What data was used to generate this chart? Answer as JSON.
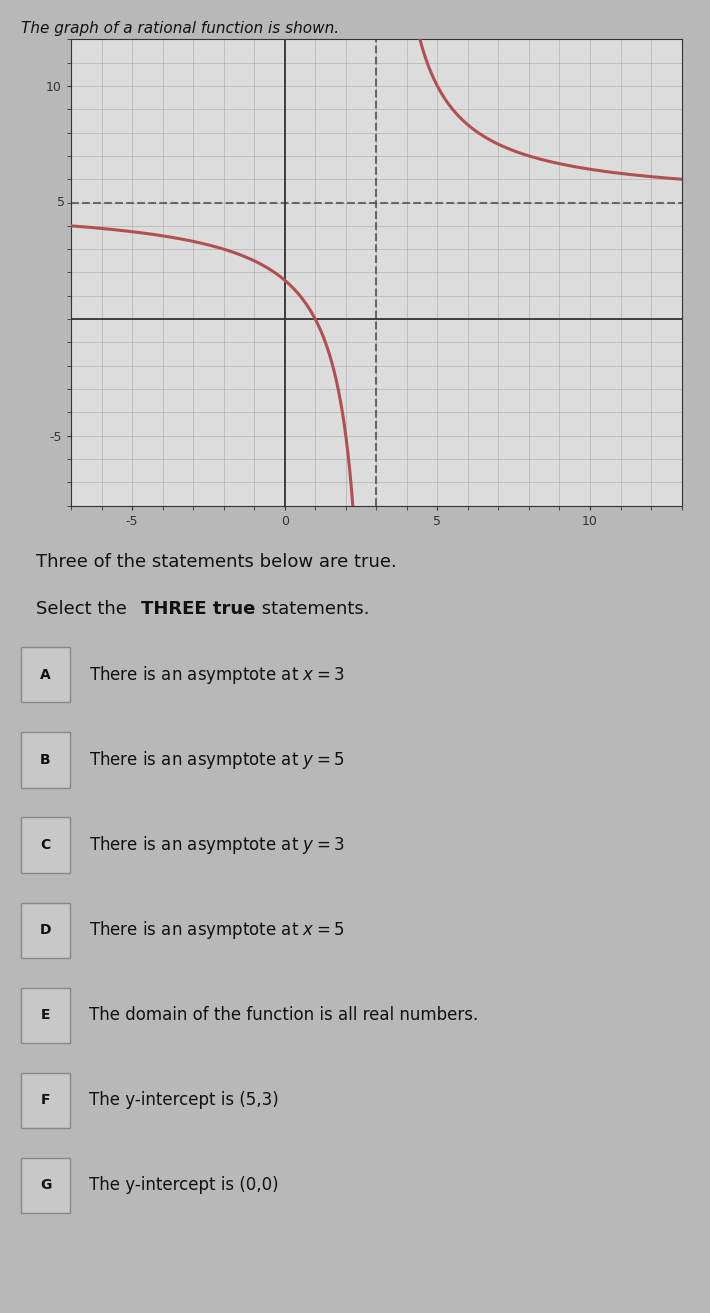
{
  "title": "The graph of a rational function is shown.",
  "graph_xlim": [
    -7,
    13
  ],
  "graph_ylim": [
    -8,
    12
  ],
  "x_axis_ticks": [
    -5,
    0,
    5,
    10
  ],
  "y_axis_ticks": [
    -5,
    10
  ],
  "y_label_5": "5",
  "y_label_10": "10",
  "vertical_asymptote": 3,
  "horizontal_asymptote": 5,
  "curve_color": "#b05050",
  "curve_linewidth": 2.2,
  "asymptote_dash_color": "#555555",
  "grid_color": "#999999",
  "grid_linewidth": 0.5,
  "axes_linecolor": "#333333",
  "graph_bg_color": "#dcdcdc",
  "fig_bg_color": "#b8b8b8",
  "label_box_facecolor": "#c8c8c8",
  "label_box_edgecolor": "#888888",
  "text_color": "#111111",
  "header_color": "#111111",
  "curve_k": 10,
  "statements": [
    {
      "label": "A",
      "text": "There is an asymptote at $x = 3$"
    },
    {
      "label": "B",
      "text": "There is an asymptote at $y = 5$"
    },
    {
      "label": "C",
      "text": "There is an asymptote at $y = 3$"
    },
    {
      "label": "D",
      "text": "There is an asymptote at $x = 5$"
    },
    {
      "label": "E",
      "text": "The domain of the function is all real numbers."
    },
    {
      "label": "F",
      "text": "The y-intercept is (5,3)"
    },
    {
      "label": "G",
      "text": "The y-intercept is (0,0)"
    }
  ]
}
